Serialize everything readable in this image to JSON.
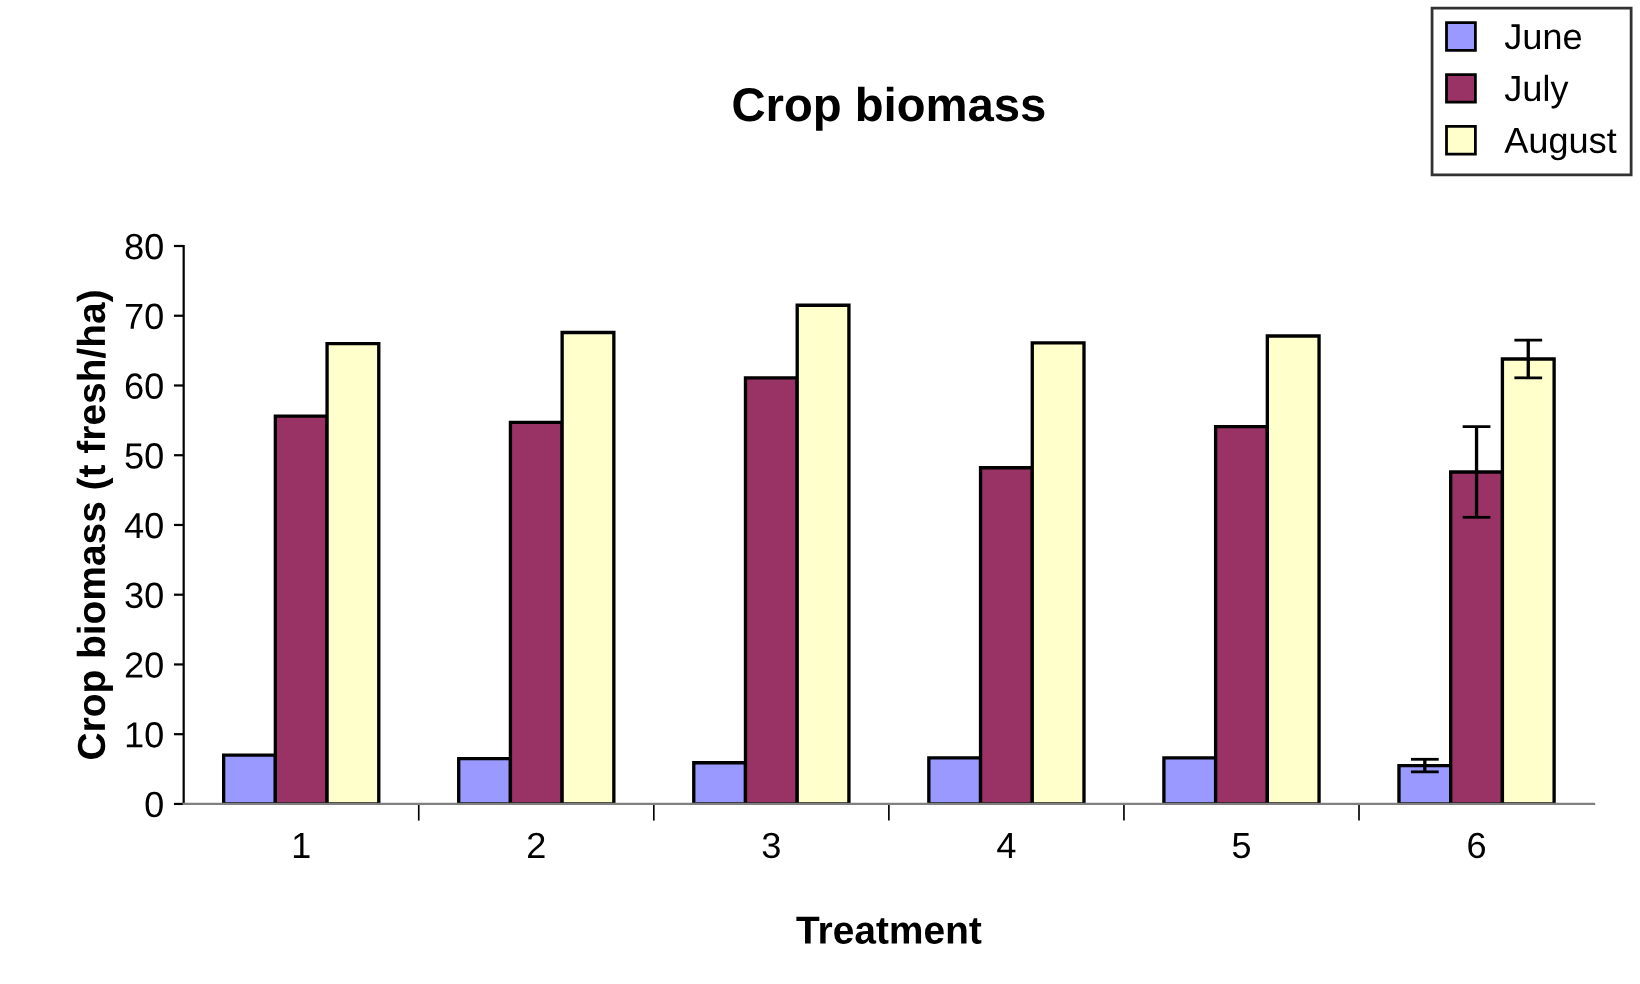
{
  "chart_data": {
    "type": "bar",
    "title": "Crop biomass",
    "xlabel": "Treatment",
    "ylabel": "Crop biomass (t fresh/ha)",
    "categories": [
      "1",
      "2",
      "3",
      "4",
      "5",
      "6"
    ],
    "series": [
      {
        "name": "June",
        "color": "#9999ff",
        "values": [
          7.0,
          6.5,
          5.9,
          6.6,
          6.6,
          5.5
        ],
        "errors": [
          null,
          null,
          null,
          null,
          null,
          0.9
        ]
      },
      {
        "name": "July",
        "color": "#993366",
        "values": [
          55.6,
          54.7,
          61.1,
          48.2,
          54.1,
          47.6
        ],
        "errors": [
          null,
          null,
          null,
          null,
          null,
          6.5
        ]
      },
      {
        "name": "August",
        "color": "#ffffcc",
        "values": [
          66.0,
          67.6,
          71.5,
          66.1,
          67.1,
          63.8
        ],
        "errors": [
          null,
          null,
          null,
          null,
          null,
          2.7
        ]
      }
    ],
    "ylim": [
      0,
      80
    ],
    "yticks": [
      0,
      10,
      20,
      30,
      40,
      50,
      60,
      70,
      80
    ],
    "grid": false,
    "legend": "top right"
  }
}
